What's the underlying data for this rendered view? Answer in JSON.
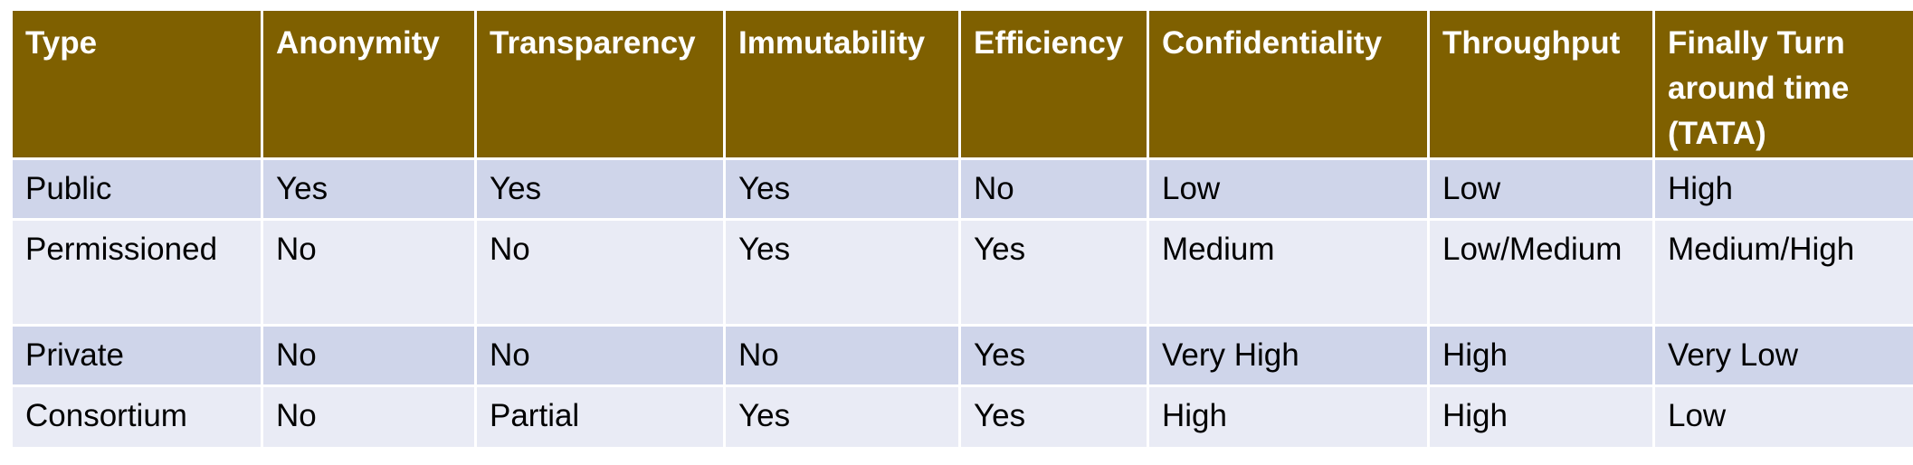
{
  "table": {
    "headers": [
      "Type",
      "Anonymity",
      "Transparency",
      "Immutability",
      "Efficiency",
      "Confidentiality",
      "Throughput",
      "Finally Turn around time (TATA)"
    ],
    "rows": [
      [
        "Public",
        "Yes",
        "Yes",
        "Yes",
        "No",
        "Low",
        "Low",
        "High"
      ],
      [
        "Permissioned",
        "No",
        "No",
        "Yes",
        "Yes",
        "Medium",
        "Low/Medium",
        "Medium/High"
      ],
      [
        "Private",
        "No",
        "No",
        "No",
        "Yes",
        "Very High",
        "High",
        "Very Low"
      ],
      [
        "Consortium",
        "No",
        "Partial",
        "Yes",
        "Yes",
        "High",
        "High",
        "Low"
      ]
    ],
    "colors": {
      "header_bg": "#7f6000",
      "header_text": "#ffffff",
      "row_odd_bg": "#cfd5ea",
      "row_even_bg": "#e9ebf5"
    }
  }
}
